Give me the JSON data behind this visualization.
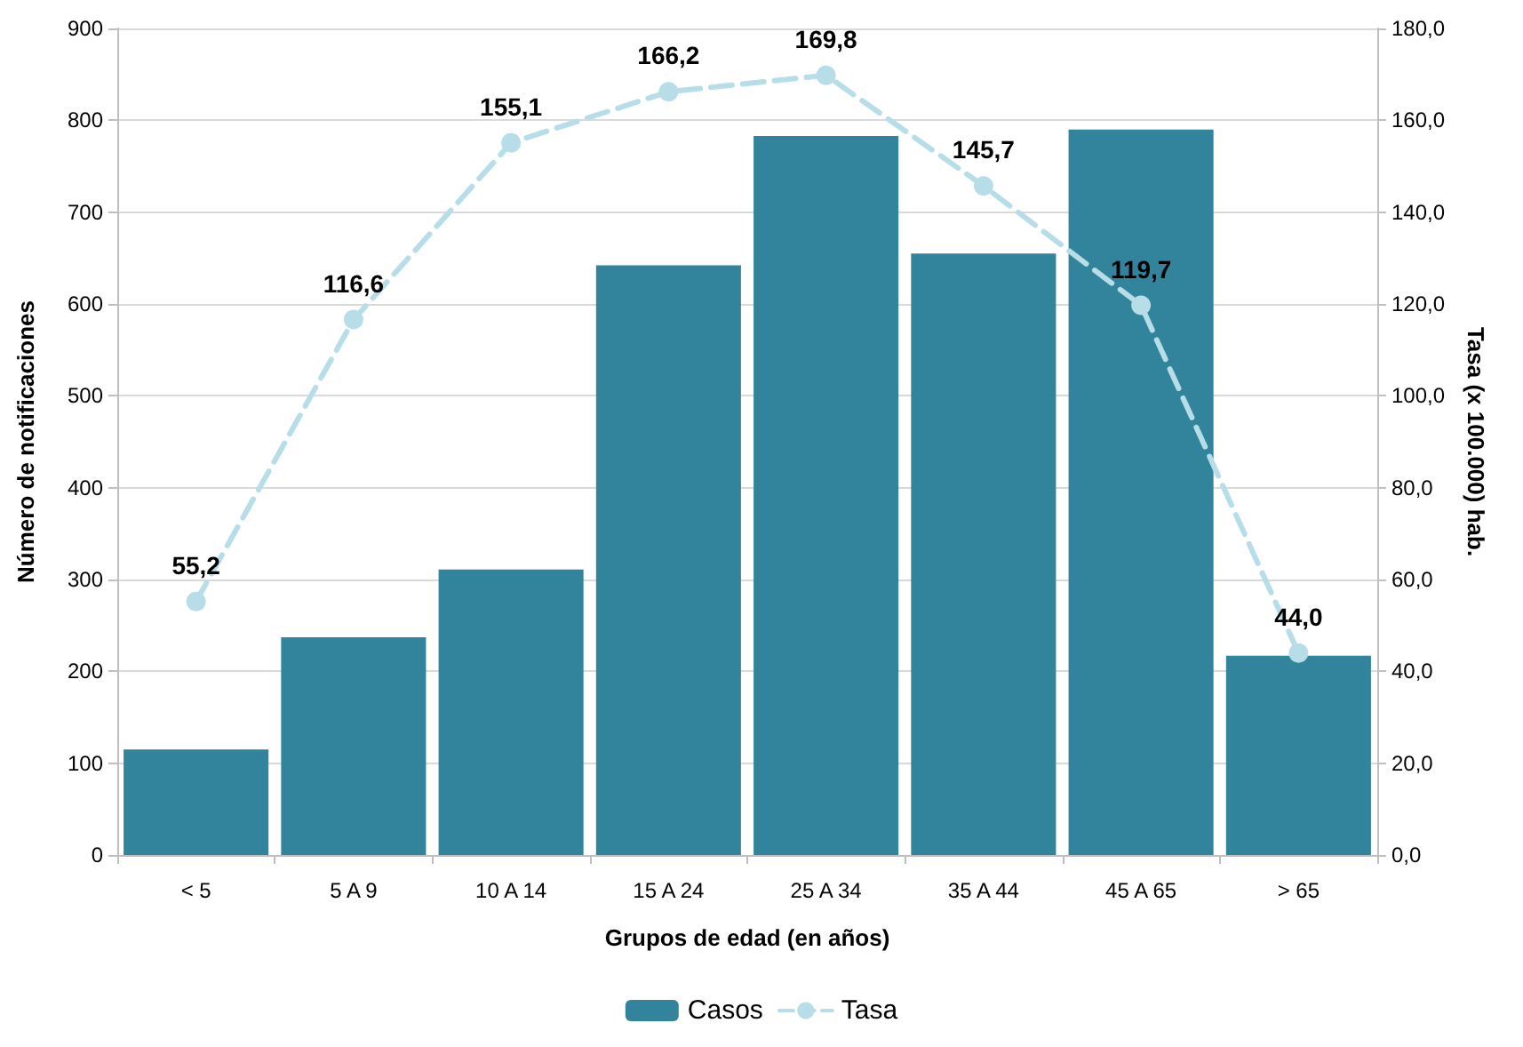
{
  "chart_data": {
    "type": "bar",
    "xlabel": "Grupos de edad (en años)",
    "ylabel": "Número de notificaciones",
    "y2label": "Tasa (x 100.000) hab.",
    "categories": [
      "< 5",
      "5 A 9",
      "10 A 14",
      "15 A 24",
      "25 A 34",
      "35 A 44",
      "45 A 65",
      "> 65"
    ],
    "series": [
      {
        "name": "Casos",
        "color": "#31849b",
        "values": [
          115,
          237,
          311,
          642,
          783,
          655,
          790,
          217
        ]
      },
      {
        "name": "Tasa",
        "type": "line",
        "axis": "y2",
        "color": "#b7dde8",
        "marker": "circle",
        "line_style": "dashed",
        "values": [
          55.2,
          116.6,
          155.1,
          166.2,
          169.8,
          145.7,
          119.7,
          44.0
        ],
        "value_labels": [
          "55,2",
          "116,6",
          "155,1",
          "166,2",
          "169,8",
          "145,7",
          "119,7",
          "44,0"
        ]
      }
    ],
    "ylim": [
      0,
      900
    ],
    "yticks": [
      0,
      100,
      200,
      300,
      400,
      500,
      600,
      700,
      800,
      900
    ],
    "y2lim": [
      0,
      180
    ],
    "y2ticks": [
      {
        "value": 0,
        "label": "0,0"
      },
      {
        "value": 20,
        "label": "20,0"
      },
      {
        "value": 40,
        "label": "40,0"
      },
      {
        "value": 60,
        "label": "60,0"
      },
      {
        "value": 80,
        "label": "80,0"
      },
      {
        "value": 100,
        "label": "100,0"
      },
      {
        "value": 120,
        "label": "120,0"
      },
      {
        "value": 140,
        "label": "140,0"
      },
      {
        "value": 160,
        "label": "160,0"
      },
      {
        "value": 180,
        "label": "180,0"
      }
    ],
    "grid": "y",
    "legend": "bottom"
  }
}
